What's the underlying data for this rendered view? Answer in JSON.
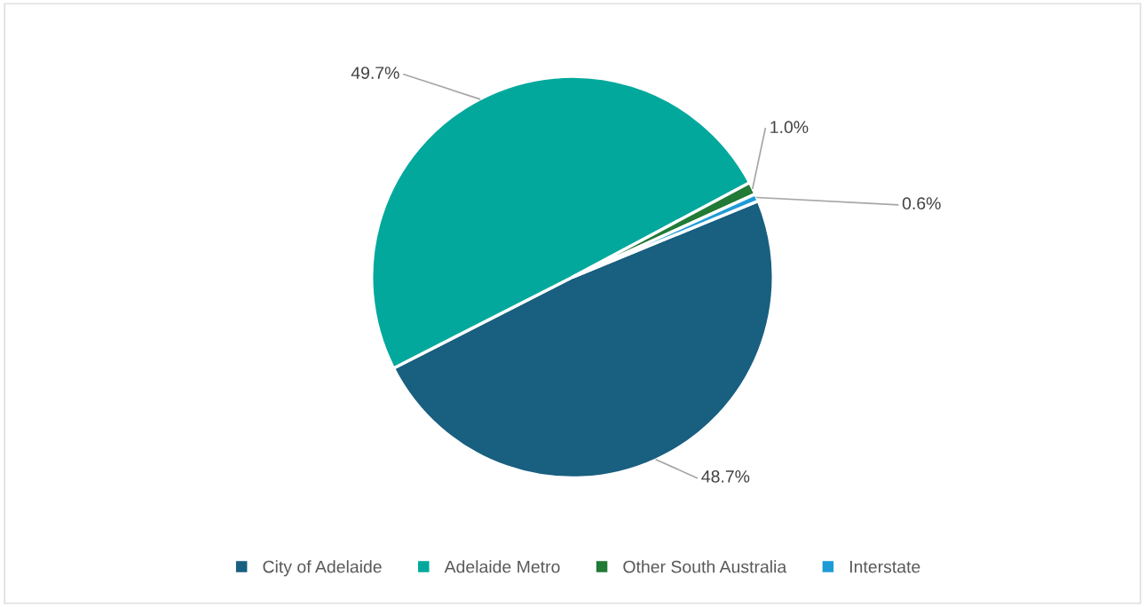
{
  "chart_data": {
    "type": "pie",
    "categories": [
      "City of Adelaide",
      "Adelaide Metro",
      "Other South Australia",
      "Interstate"
    ],
    "values": [
      48.7,
      49.7,
      1.0,
      0.6
    ],
    "colors": [
      "#185f80",
      "#02a89c",
      "#217a35",
      "#1e9bd7"
    ],
    "value_labels": [
      "48.7%",
      "49.7%",
      "1.0%",
      "0.6%"
    ],
    "legend": "bottom"
  }
}
